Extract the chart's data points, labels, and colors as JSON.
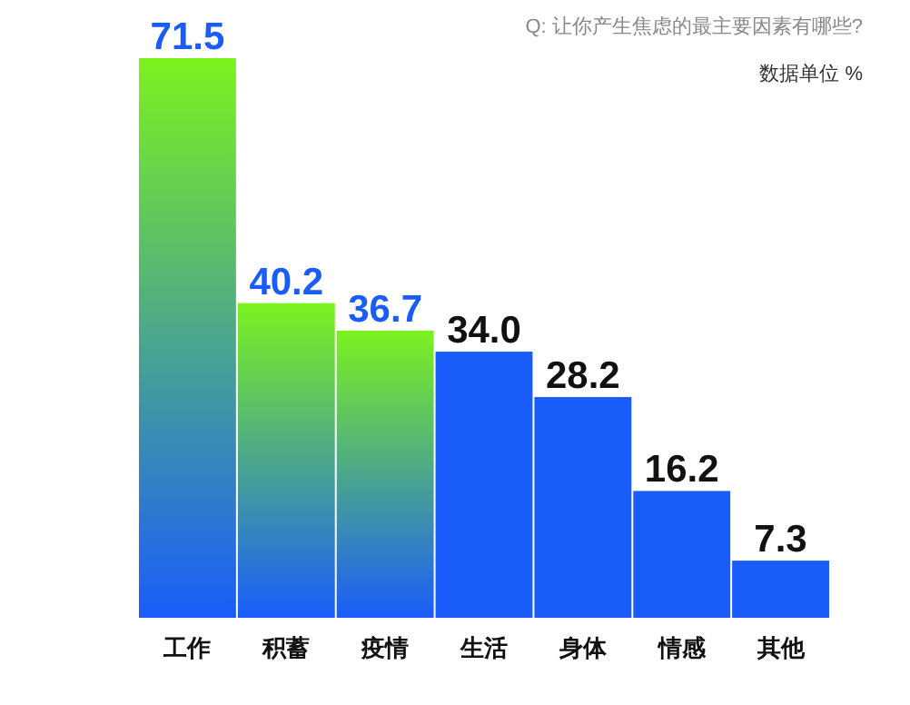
{
  "chart_data": {
    "type": "bar",
    "title": "Q: 让你产生焦虑的最主要因素有哪些?",
    "annotations": [
      "数据单位 %"
    ],
    "categories": [
      "工作",
      "积蓄",
      "疫情",
      "生活",
      "身体",
      "情感",
      "其他"
    ],
    "series": [
      {
        "color": "#1a5cfa",
        "values": [
          71.5,
          40.2,
          36.7,
          34.0,
          28.2,
          16.2,
          7.3
        ],
        "colors": [
          "#7cf21e",
          "#7cf21e",
          "#7cf21e",
          "#1a5cfa",
          "#1a5cfa",
          "#1a5cfa",
          "#1a5cfa"
        ],
        "value_labels": [
          "71.5",
          "40.2",
          "36.7",
          "34.0",
          "28.2",
          "16.2",
          "7.3"
        ]
      }
    ],
    "data_labels": false
  }
}
